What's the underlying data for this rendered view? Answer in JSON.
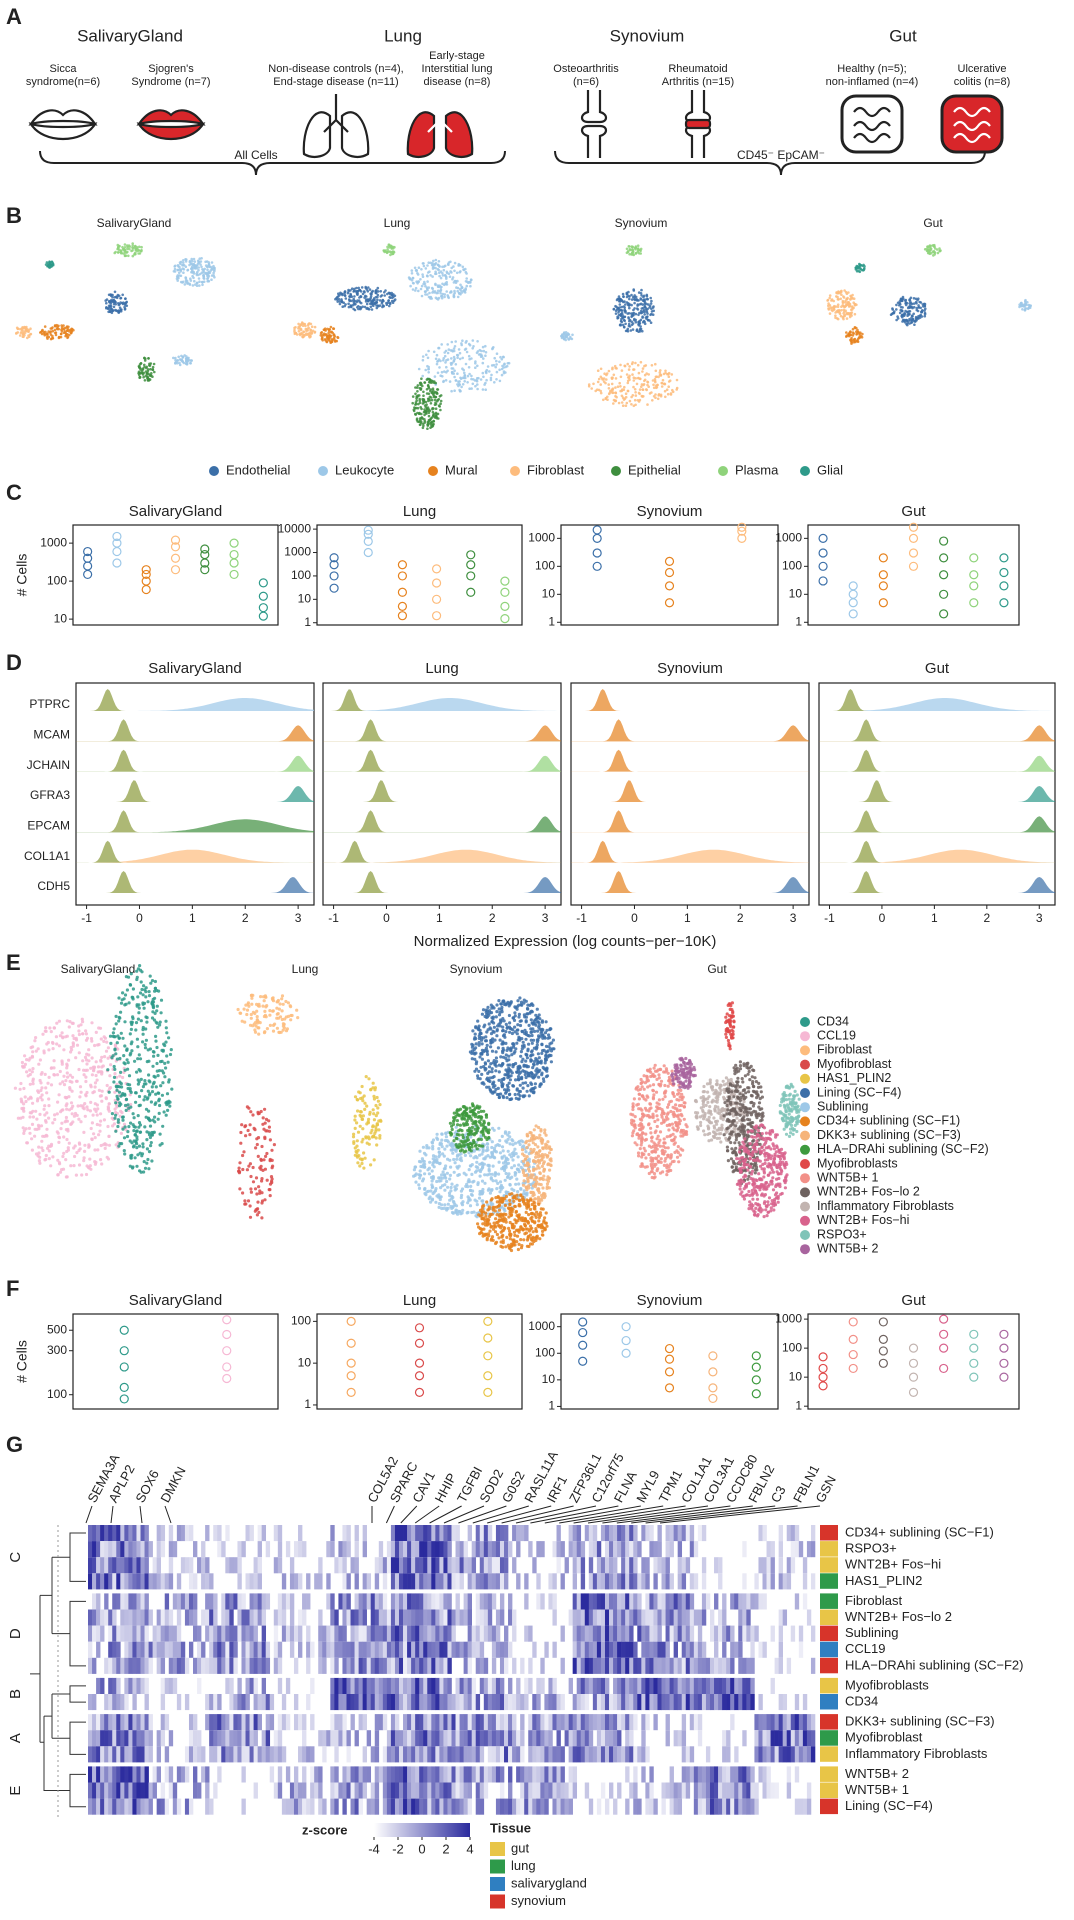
{
  "panel_labels": [
    "A",
    "B",
    "C",
    "D",
    "E",
    "F",
    "G"
  ],
  "panel_a": {
    "titles": [
      "SalivaryGland",
      "Lung",
      "Synovium",
      "Gut"
    ],
    "groups": [
      [
        "Sicca",
        "syndrome(n=6)"
      ],
      [
        "Sjogren's",
        "Syndrome (n=7)"
      ],
      [
        "Non-disease controls (n=4),",
        "End-stage disease (n=11)"
      ],
      [
        "Early-stage",
        "Interstitial lung",
        "disease (n=8)"
      ],
      [
        "Osteoarthritis",
        "(n=6)"
      ],
      [
        "Rheumatoid",
        "Arthritis (n=15)"
      ],
      [
        "Healthy (n=5);",
        "non-inflamed (n=4)"
      ],
      [
        "Ulcerative",
        "colitis (n=8)"
      ]
    ],
    "brace_labels": [
      "All Cells",
      "CD45⁻ EpCAM⁻"
    ]
  },
  "panel_b": {
    "titles": [
      "SalivaryGland",
      "Lung",
      "Synovium",
      "Gut"
    ],
    "legend": [
      {
        "name": "Endothelial",
        "color": "#3b6fa8"
      },
      {
        "name": "Leukocyte",
        "color": "#9dc8e8"
      },
      {
        "name": "Mural",
        "color": "#e6821e"
      },
      {
        "name": "Fibroblast",
        "color": "#fdbc7d"
      },
      {
        "name": "Epithelial",
        "color": "#3e8e3e"
      },
      {
        "name": "Plasma",
        "color": "#8fd37b"
      },
      {
        "name": "Glial",
        "color": "#2e9a8a"
      }
    ]
  },
  "panel_e": {
    "titles": [
      "SalivaryGland",
      "Lung",
      "Synovium",
      "Gut"
    ],
    "legend": [
      {
        "name": "CD34",
        "color": "#2e9a8a"
      },
      {
        "name": "CCL19",
        "color": "#f6b8d4"
      },
      {
        "name": "Fibroblast",
        "color": "#fdbc7d"
      },
      {
        "name": "Myofibroblast",
        "color": "#d94a4a"
      },
      {
        "name": "HAS1_PLIN2",
        "color": "#e8c547"
      },
      {
        "name": "Lining (SC−F4)",
        "color": "#3b6fa8"
      },
      {
        "name": "Sublining",
        "color": "#9dc8e8"
      },
      {
        "name": "CD34+ sublining (SC−F1)",
        "color": "#e6821e"
      },
      {
        "name": "DKK3+ sublining (SC−F3)",
        "color": "#f6b47a"
      },
      {
        "name": "HLA−DRAhi sublining (SC−F2)",
        "color": "#3e9a3e"
      },
      {
        "name": "Myofibroblasts",
        "color": "#e04848"
      },
      {
        "name": "WNT5B+ 1",
        "color": "#f29088"
      },
      {
        "name": "WNT2B+ Fos−lo 2",
        "color": "#6e625f"
      },
      {
        "name": "Inflammatory Fibroblasts",
        "color": "#c2b4b0"
      },
      {
        "name": "WNT2B+ Fos−hi",
        "color": "#d8628c"
      },
      {
        "name": "RSPO3+",
        "color": "#7fc4b8"
      },
      {
        "name": "WNT5B+ 2",
        "color": "#a8649e"
      }
    ]
  },
  "chart_data": [
    {
      "type": "strip",
      "title": "SalivaryGland",
      "ylabel": "# Cells",
      "log": true,
      "ylim": [
        7,
        3000
      ],
      "yticks": [
        10,
        100,
        1000
      ],
      "series": [
        {
          "color": "#3b6fa8",
          "values": [
            150,
            250,
            400,
            600
          ]
        },
        {
          "color": "#9dc8e8",
          "values": [
            300,
            600,
            1000,
            1500
          ]
        },
        {
          "color": "#e6821e",
          "values": [
            60,
            100,
            150,
            200
          ]
        },
        {
          "color": "#fdbc7d",
          "values": [
            200,
            400,
            800,
            1200
          ]
        },
        {
          "color": "#3e8e3e",
          "values": [
            200,
            300,
            500,
            700
          ]
        },
        {
          "color": "#8fd37b",
          "values": [
            150,
            300,
            500,
            1000
          ]
        },
        {
          "color": "#2e9a8a",
          "values": [
            12,
            20,
            40,
            90
          ]
        }
      ]
    },
    {
      "type": "strip",
      "title": "Lung",
      "log": true,
      "ylim": [
        0.8,
        15000
      ],
      "yticks": [
        1,
        10,
        100,
        1000,
        10000
      ],
      "series": [
        {
          "color": "#3b6fa8",
          "values": [
            30,
            100,
            300,
            600
          ]
        },
        {
          "color": "#9dc8e8",
          "values": [
            1000,
            3000,
            6000,
            9000
          ]
        },
        {
          "color": "#e6821e",
          "values": [
            2,
            5,
            20,
            100,
            300
          ]
        },
        {
          "color": "#fdbc7d",
          "values": [
            2,
            10,
            50,
            200
          ]
        },
        {
          "color": "#3e8e3e",
          "values": [
            20,
            100,
            300,
            800
          ]
        },
        {
          "color": "#8fd37b",
          "values": [
            1.5,
            5,
            20,
            60
          ]
        }
      ]
    },
    {
      "type": "strip",
      "title": "Synovium",
      "log": true,
      "ylim": [
        0.8,
        3000
      ],
      "yticks": [
        1,
        10,
        100,
        1000
      ],
      "series": [
        {
          "color": "#3b6fa8",
          "values": [
            100,
            300,
            1000,
            2000
          ]
        },
        {
          "color": "#e6821e",
          "values": [
            5,
            20,
            60,
            150
          ]
        },
        {
          "color": "#fdbc7d",
          "values": [
            1000,
            1800,
            2500
          ]
        }
      ]
    },
    {
      "type": "strip",
      "title": "Gut",
      "log": true,
      "ylim": [
        0.8,
        3000
      ],
      "yticks": [
        1,
        10,
        100,
        1000
      ],
      "series": [
        {
          "color": "#3b6fa8",
          "values": [
            30,
            100,
            300,
            1000
          ]
        },
        {
          "color": "#9dc8e8",
          "values": [
            2,
            5,
            10,
            20
          ]
        },
        {
          "color": "#e6821e",
          "values": [
            5,
            20,
            50,
            200
          ]
        },
        {
          "color": "#fdbc7d",
          "values": [
            100,
            300,
            1000,
            2500
          ]
        },
        {
          "color": "#3e8e3e",
          "values": [
            2,
            10,
            50,
            200,
            800
          ]
        },
        {
          "color": "#8fd37b",
          "values": [
            5,
            20,
            50,
            200
          ]
        },
        {
          "color": "#2e9a8a",
          "values": [
            5,
            20,
            60,
            200
          ]
        }
      ]
    },
    {
      "type": "ridge",
      "title": "SalivaryGland",
      "xlabel": "Normalized Expression (log counts−per−10K)",
      "xlim": [
        -1.2,
        3.3
      ],
      "xticks": [
        -1,
        0,
        1,
        2,
        3
      ],
      "base_color": "#8a9a3a",
      "series": [
        {
          "name": "PTPRC",
          "color": "#9dc8e8",
          "values": [
            -0.6,
            2.0
          ]
        },
        {
          "name": "MCAM",
          "color": "#e6821e",
          "values": [
            -0.3,
            3.0
          ]
        },
        {
          "name": "JCHAIN",
          "color": "#8fd37b",
          "values": [
            -0.3,
            3.0
          ]
        },
        {
          "name": "GFRA3",
          "color": "#2e9a8a",
          "values": [
            -0.1,
            3.0
          ]
        },
        {
          "name": "EPCAM",
          "color": "#3e8e3e",
          "values": [
            -0.3,
            2.0
          ]
        },
        {
          "name": "COL1A1",
          "color": "#fdbc7d",
          "values": [
            -0.6,
            1.0
          ]
        },
        {
          "name": "CDH5",
          "color": "#3b6fa8",
          "values": [
            -0.3,
            2.9
          ]
        }
      ]
    },
    {
      "type": "ridge",
      "title": "Lung",
      "xlim": [
        -1.2,
        3.3
      ],
      "xticks": [
        -1,
        0,
        1,
        2,
        3
      ],
      "base_color": "#8a9a3a",
      "series": [
        {
          "color": "#9dc8e8",
          "values": [
            -0.7,
            1.2
          ]
        },
        {
          "color": "#e6821e",
          "values": [
            -0.3,
            3.0
          ]
        },
        {
          "color": "#8fd37b",
          "values": [
            -0.3,
            3.0
          ]
        },
        {
          "color": "#2e9a8a",
          "values": [
            -0.1,
            null
          ]
        },
        {
          "color": "#3e8e3e",
          "values": [
            -0.3,
            3.0
          ]
        },
        {
          "color": "#fdbc7d",
          "values": [
            -0.6,
            1.5
          ]
        },
        {
          "color": "#3b6fa8",
          "values": [
            -0.3,
            3.0
          ]
        }
      ]
    },
    {
      "type": "ridge",
      "title": "Synovium",
      "xlim": [
        -1.2,
        3.3
      ],
      "xticks": [
        -1,
        0,
        1,
        2,
        3
      ],
      "base_color": "#e6821e",
      "series": [
        {
          "color": "#9dc8e8",
          "values": [
            -0.6,
            null
          ]
        },
        {
          "color": "#e6821e",
          "values": [
            -0.3,
            3.0
          ]
        },
        {
          "color": "#8fd37b",
          "values": [
            -0.3,
            null
          ]
        },
        {
          "color": "#2e9a8a",
          "values": [
            -0.1,
            null
          ]
        },
        {
          "color": "#3e8e3e",
          "values": [
            -0.3,
            null
          ]
        },
        {
          "color": "#fdbc7d",
          "values": [
            -0.6,
            1.5
          ]
        },
        {
          "color": "#3b6fa8",
          "values": [
            -0.3,
            3.0
          ]
        }
      ]
    },
    {
      "type": "ridge",
      "title": "Gut",
      "xlim": [
        -1.2,
        3.3
      ],
      "xticks": [
        -1,
        0,
        1,
        2,
        3
      ],
      "base_color": "#8a9a3a",
      "series": [
        {
          "color": "#9dc8e8",
          "values": [
            -0.6,
            1.2
          ]
        },
        {
          "color": "#e6821e",
          "values": [
            -0.3,
            3.0
          ]
        },
        {
          "color": "#8fd37b",
          "values": [
            -0.3,
            3.0
          ]
        },
        {
          "color": "#2e9a8a",
          "values": [
            -0.1,
            3.0
          ]
        },
        {
          "color": "#3e8e3e",
          "values": [
            -0.3,
            3.0
          ]
        },
        {
          "color": "#fdbc7d",
          "values": [
            -0.3,
            1.5
          ]
        },
        {
          "color": "#3b6fa8",
          "values": [
            -0.3,
            3.0
          ]
        }
      ]
    },
    {
      "type": "strip",
      "title": "SalivaryGland",
      "ylabel": "# Cells",
      "log": true,
      "ylim": [
        70,
        750
      ],
      "yticks": [
        100,
        300,
        500
      ],
      "series": [
        {
          "color": "#2e9a8a",
          "values": [
            90,
            120,
            200,
            300,
            500
          ]
        },
        {
          "color": "#f6b8d4",
          "values": [
            150,
            200,
            300,
            450,
            650
          ]
        }
      ]
    },
    {
      "type": "strip",
      "title": "Lung",
      "log": true,
      "ylim": [
        0.8,
        150
      ],
      "yticks": [
        1,
        10,
        100
      ],
      "series": [
        {
          "color": "#f6a860",
          "values": [
            2,
            5,
            10,
            30,
            100
          ]
        },
        {
          "color": "#d94a4a",
          "values": [
            2,
            5,
            10,
            30,
            70
          ]
        },
        {
          "color": "#e8c547",
          "values": [
            2,
            5,
            15,
            40,
            100
          ]
        }
      ]
    },
    {
      "type": "strip",
      "title": "Synovium",
      "log": true,
      "ylim": [
        0.8,
        3000
      ],
      "yticks": [
        1,
        10,
        100,
        1000
      ],
      "series": [
        {
          "color": "#3b6fa8",
          "values": [
            50,
            200,
            600,
            1500
          ]
        },
        {
          "color": "#9dc8e8",
          "values": [
            100,
            300,
            1000
          ]
        },
        {
          "color": "#e6821e",
          "values": [
            5,
            20,
            60,
            150
          ]
        },
        {
          "color": "#f6b47a",
          "values": [
            2,
            5,
            20,
            80
          ]
        },
        {
          "color": "#3e9a3e",
          "values": [
            3,
            10,
            30,
            80
          ]
        }
      ]
    },
    {
      "type": "strip",
      "title": "Gut",
      "log": true,
      "ylim": [
        0.8,
        1500
      ],
      "yticks": [
        1,
        10,
        100,
        1000
      ],
      "series": [
        {
          "color": "#e04848",
          "values": [
            5,
            10,
            20,
            50
          ]
        },
        {
          "color": "#f29088",
          "values": [
            20,
            60,
            200,
            800
          ]
        },
        {
          "color": "#6e625f",
          "values": [
            30,
            80,
            200,
            800
          ]
        },
        {
          "color": "#c2b4b0",
          "values": [
            3,
            10,
            30,
            100
          ]
        },
        {
          "color": "#d8628c",
          "values": [
            20,
            100,
            300,
            1000
          ]
        },
        {
          "color": "#7fc4b8",
          "values": [
            10,
            30,
            100,
            300
          ]
        },
        {
          "color": "#a8649e",
          "values": [
            10,
            30,
            100,
            300
          ]
        }
      ]
    }
  ],
  "panel_g": {
    "genes": [
      "SEMA3A",
      "APLP2",
      "SOX6",
      "DMKN",
      "COL5A2",
      "SPARC",
      "CAV1",
      "HHIP",
      "TGFBI",
      "SOD2",
      "G0S2",
      "RASL11A",
      "IRF1",
      "ZFP36L1",
      "C12orf75",
      "FLNA",
      "MYL9",
      "TPM1",
      "COL1A1",
      "COL3A1",
      "CCDC80",
      "FBLN2",
      "C3",
      "FBLN1",
      "GSN"
    ],
    "groups": [
      {
        "label": "C",
        "rows": [
          {
            "label": "CD34+ sublining (SC−F1)",
            "color": "#d7342a"
          },
          {
            "label": "RSPO3+",
            "color": "#e8c547"
          },
          {
            "label": "WNT2B+ Fos−hi",
            "color": "#e8c547"
          },
          {
            "label": "HAS1_PLIN2",
            "color": "#2e9a4a"
          }
        ]
      },
      {
        "label": "D",
        "rows": [
          {
            "label": "Fibroblast",
            "color": "#2e9a4a"
          },
          {
            "label": "WNT2B+ Fos−lo 2",
            "color": "#e8c547"
          },
          {
            "label": "Sublining",
            "color": "#d7342a"
          },
          {
            "label": "CCL19",
            "color": "#2f7fc1"
          },
          {
            "label": "HLA−DRAhi sublining (SC−F2)",
            "color": "#d7342a"
          }
        ]
      },
      {
        "label": "B",
        "rows": [
          {
            "label": "Myofibroblasts",
            "color": "#e8c547"
          },
          {
            "label": "CD34",
            "color": "#2f7fc1"
          }
        ]
      },
      {
        "label": "A",
        "rows": [
          {
            "label": "DKK3+ sublining (SC−F3)",
            "color": "#d7342a"
          },
          {
            "label": "Myofibroblast",
            "color": "#2e9a4a"
          },
          {
            "label": "Inflammatory Fibroblasts",
            "color": "#e8c547"
          }
        ]
      },
      {
        "label": "E",
        "rows": [
          {
            "label": "WNT5B+ 2",
            "color": "#e8c547"
          },
          {
            "label": "WNT5B+ 1",
            "color": "#e8c547"
          },
          {
            "label": "Lining (SC−F4)",
            "color": "#d7342a"
          }
        ]
      }
    ],
    "zscore_title": "z-score",
    "zscore_ticks": [
      -4,
      -2,
      0,
      2,
      4
    ],
    "zscore_colors": [
      "#ffffff",
      "#2b2b9e"
    ],
    "tissue_title": "Tissue",
    "tissues": [
      {
        "name": "gut",
        "color": "#e8c547"
      },
      {
        "name": "lung",
        "color": "#2e9a4a"
      },
      {
        "name": "salivarygland",
        "color": "#2f7fc1"
      },
      {
        "name": "synovium",
        "color": "#d7342a"
      }
    ]
  }
}
